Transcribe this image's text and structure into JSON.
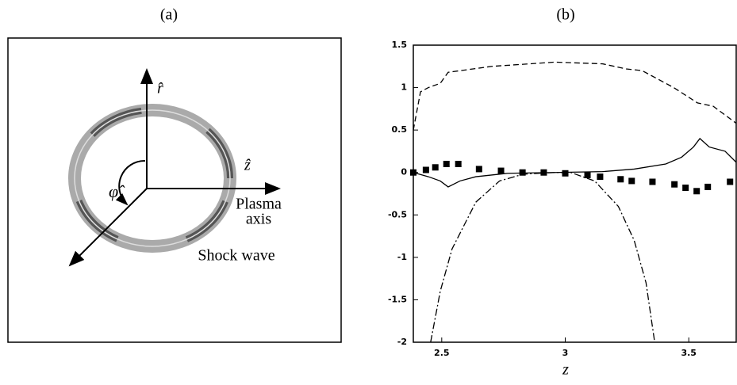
{
  "panel_a": {
    "label": "(a)",
    "r_axis": "r̂",
    "z_axis": "ẑ",
    "phi_axis": "φ̂",
    "plasma_axis": [
      "Plasma",
      "axis"
    ],
    "shock_wave": "Shock wave"
  },
  "chart_data": {
    "type": "line",
    "title": "(b)",
    "x_label": "z",
    "xlim": [
      2.385,
      3.692
    ],
    "xticks": [
      2.5,
      3,
      3.5
    ],
    "ylim": [
      -2,
      1.5
    ],
    "yticks": [
      1.5,
      1,
      0.5,
      0,
      -0.5,
      -1,
      -1.5,
      -2
    ],
    "series": [
      {
        "style": "solid",
        "color": "#000000",
        "x": [
          2.385,
          2.446,
          2.494,
          2.526,
          2.574,
          2.638,
          2.766,
          2.958,
          3.151,
          3.279,
          3.407,
          3.471,
          3.519,
          3.545,
          3.583,
          3.647,
          3.692
        ],
        "values": [
          0,
          -0.05,
          -0.1,
          -0.17,
          -0.1,
          -0.05,
          -0.01,
          0,
          0.01,
          0.04,
          0.1,
          0.18,
          0.3,
          0.4,
          0.3,
          0.25,
          0.12
        ]
      },
      {
        "style": "dashed",
        "color": "#000000",
        "x": [
          2.385,
          2.414,
          2.446,
          2.494,
          2.526,
          2.702,
          2.958,
          3.151,
          3.247,
          3.311,
          3.439,
          3.535,
          3.599,
          3.692
        ],
        "values": [
          0.5,
          0.95,
          1.0,
          1.05,
          1.18,
          1.25,
          1.3,
          1.28,
          1.22,
          1.2,
          1.0,
          0.82,
          0.78,
          0.58
        ]
      },
      {
        "style": "dashdot",
        "color": "#000000",
        "x": [
          2.455,
          2.494,
          2.542,
          2.638,
          2.734,
          2.83,
          2.958,
          3.022,
          3.119,
          3.215,
          3.279,
          3.327,
          3.362
        ],
        "values": [
          -2,
          -1.4,
          -0.9,
          -0.35,
          -0.1,
          -0.02,
          0,
          0,
          -0.1,
          -0.4,
          -0.8,
          -1.3,
          -2
        ]
      },
      {
        "style": "squares",
        "color": "#000000",
        "x": [
          2.385,
          2.436,
          2.474,
          2.519,
          2.567,
          2.651,
          2.74,
          2.827,
          2.913,
          3.0,
          3.09,
          3.141,
          3.224,
          3.269,
          3.353,
          3.442,
          3.487,
          3.532,
          3.577,
          3.667
        ],
        "values": [
          0,
          0.03,
          0.06,
          0.1,
          0.1,
          0.04,
          0.02,
          0,
          0,
          -0.01,
          -0.03,
          -0.05,
          -0.08,
          -0.1,
          -0.11,
          -0.14,
          -0.18,
          -0.22,
          -0.17,
          -0.11
        ]
      }
    ]
  }
}
